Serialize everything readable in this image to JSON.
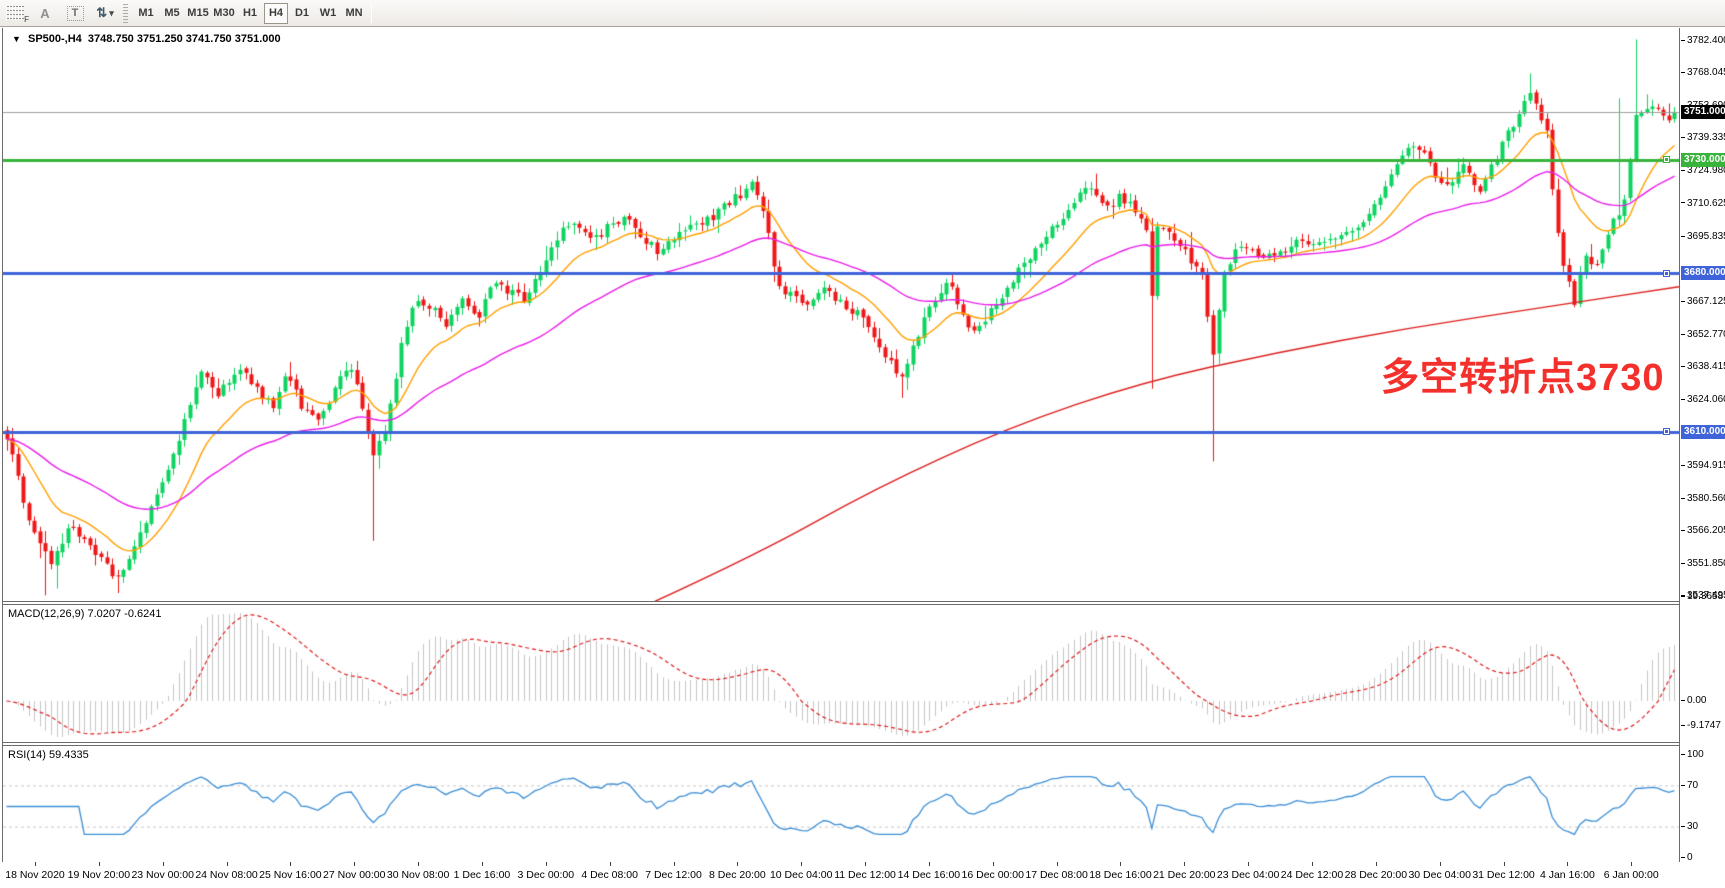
{
  "toolbar": {
    "icons": [
      {
        "name": "chart-grid-f-icon"
      },
      {
        "name": "text-annotation-icon",
        "glyph": "A"
      },
      {
        "name": "text-label-icon",
        "glyph": "T"
      },
      {
        "name": "arrange-arrows-icon",
        "glyph": "⇅"
      },
      {
        "name": "dropdown-caret-icon",
        "glyph": "▾"
      }
    ],
    "timeframes": [
      "M1",
      "M5",
      "M15",
      "M30",
      "H1",
      "H4",
      "D1",
      "W1",
      "MN"
    ],
    "active_timeframe": "H4"
  },
  "chart_window": {
    "title": "SP500-,H4",
    "ohlc": "3748.750 3751.250 3741.750 3751.000"
  },
  "annotation": {
    "text": "多空转折点3730",
    "color": "#f3302c"
  },
  "indicators": {
    "macd_label": "MACD(12,26,9) 7.0207 -0.6241",
    "rsi_label": "RSI(14) 59.4335"
  },
  "price_scale": {
    "ticks": [
      "3782.400",
      "3768.045",
      "3753.690",
      "3739.335",
      "3724.980",
      "3710.625",
      "3695.835",
      "3667.125",
      "3652.770",
      "3638.415",
      "3624.060",
      "3594.915",
      "3580.560",
      "3566.205",
      "3551.850",
      "3537.495"
    ],
    "tick_values": [
      3782.4,
      3768.045,
      3753.69,
      3739.335,
      3724.98,
      3710.625,
      3695.835,
      3667.125,
      3652.77,
      3638.415,
      3624.06,
      3594.915,
      3580.56,
      3566.205,
      3551.85,
      3537.495
    ]
  },
  "time_scale": {
    "labels": [
      "18 Nov 2020",
      "19 Nov 20:00",
      "23 Nov 00:00",
      "24 Nov 08:00",
      "25 Nov 16:00",
      "27 Nov 00:00",
      "30 Nov 08:00",
      "1 Dec 16:00",
      "3 Dec 00:00",
      "4 Dec 08:00",
      "7 Dec 12:00",
      "8 Dec 20:00",
      "10 Dec 04:00",
      "11 Dec 12:00",
      "14 Dec 16:00",
      "16 Dec 00:00",
      "17 Dec 08:00",
      "18 Dec 16:00",
      "21 Dec 20:00",
      "23 Dec 04:00",
      "24 Dec 12:00",
      "28 Dec 20:00",
      "30 Dec 04:00",
      "31 Dec 12:00",
      "4 Jan 16:00",
      "6 Jan 00:00"
    ]
  },
  "colors": {
    "candle_up": "#0ed45f",
    "candle_down": "#ef1717",
    "ma_fast": "#ffa000",
    "ma_medium": "#ea1fea",
    "ma_slow": "#dd1f1f",
    "hline_green": "#38b43c",
    "hline_blue": "#3f63d9",
    "current_price_line": "#9e9e9e",
    "current_price_badge": "#000000",
    "macd_hist": "#c6c6c6",
    "macd_signal": "#dd1f1f",
    "rsi_line": "#3d8fd6",
    "rsi_levels": "#c9c9c9"
  },
  "chart_data": {
    "type": "candlestick",
    "symbol": "SP500-",
    "timeframe": "H4",
    "bar_count": 301,
    "price_axis": {
      "max": 3788.0,
      "min": 3535.5
    },
    "last_close": 3751.0,
    "hlines": [
      {
        "price": 3751.0,
        "label": "3751.000",
        "style": "current"
      },
      {
        "price": 3730.0,
        "label": "3730.000",
        "style": "green"
      },
      {
        "price": 3680.0,
        "label": "3680.000",
        "style": "blue"
      },
      {
        "price": 3610.0,
        "label": "3610.000",
        "style": "blue"
      }
    ],
    "close_path_anchors": [
      [
        0.0,
        3608
      ],
      [
        0.008,
        3585
      ],
      [
        0.018,
        3562
      ],
      [
        0.026,
        3552
      ],
      [
        0.038,
        3568
      ],
      [
        0.048,
        3560
      ],
      [
        0.058,
        3552
      ],
      [
        0.068,
        3545
      ],
      [
        0.078,
        3560
      ],
      [
        0.09,
        3582
      ],
      [
        0.1,
        3600
      ],
      [
        0.11,
        3622
      ],
      [
        0.117,
        3638
      ],
      [
        0.125,
        3626
      ],
      [
        0.133,
        3632
      ],
      [
        0.142,
        3640
      ],
      [
        0.15,
        3628
      ],
      [
        0.16,
        3622
      ],
      [
        0.168,
        3636
      ],
      [
        0.178,
        3620
      ],
      [
        0.188,
        3615
      ],
      [
        0.196,
        3628
      ],
      [
        0.205,
        3640
      ],
      [
        0.212,
        3625
      ],
      [
        0.22,
        3601
      ],
      [
        0.228,
        3612
      ],
      [
        0.237,
        3650
      ],
      [
        0.245,
        3668
      ],
      [
        0.255,
        3665
      ],
      [
        0.263,
        3658
      ],
      [
        0.272,
        3668
      ],
      [
        0.282,
        3660
      ],
      [
        0.292,
        3678
      ],
      [
        0.3,
        3672
      ],
      [
        0.31,
        3668
      ],
      [
        0.32,
        3682
      ],
      [
        0.33,
        3696
      ],
      [
        0.34,
        3702
      ],
      [
        0.35,
        3694
      ],
      [
        0.36,
        3700
      ],
      [
        0.37,
        3705
      ],
      [
        0.38,
        3695
      ],
      [
        0.39,
        3690
      ],
      [
        0.4,
        3696
      ],
      [
        0.41,
        3700
      ],
      [
        0.42,
        3703
      ],
      [
        0.43,
        3710
      ],
      [
        0.44,
        3715
      ],
      [
        0.447,
        3719
      ],
      [
        0.454,
        3708
      ],
      [
        0.462,
        3675
      ],
      [
        0.47,
        3670
      ],
      [
        0.48,
        3665
      ],
      [
        0.49,
        3673
      ],
      [
        0.5,
        3668
      ],
      [
        0.51,
        3662
      ],
      [
        0.52,
        3652
      ],
      [
        0.53,
        3640
      ],
      [
        0.537,
        3632
      ],
      [
        0.545,
        3650
      ],
      [
        0.555,
        3668
      ],
      [
        0.565,
        3677
      ],
      [
        0.572,
        3662
      ],
      [
        0.58,
        3655
      ],
      [
        0.59,
        3663
      ],
      [
        0.6,
        3674
      ],
      [
        0.61,
        3684
      ],
      [
        0.62,
        3692
      ],
      [
        0.63,
        3702
      ],
      [
        0.64,
        3712
      ],
      [
        0.65,
        3718
      ],
      [
        0.658,
        3708
      ],
      [
        0.667,
        3714
      ],
      [
        0.676,
        3708
      ],
      [
        0.683,
        3700
      ],
      [
        0.687,
        3668
      ],
      [
        0.69,
        3700
      ],
      [
        0.7,
        3696
      ],
      [
        0.708,
        3688
      ],
      [
        0.717,
        3680
      ],
      [
        0.724,
        3640
      ],
      [
        0.728,
        3678
      ],
      [
        0.735,
        3688
      ],
      [
        0.745,
        3692
      ],
      [
        0.755,
        3687
      ],
      [
        0.765,
        3690
      ],
      [
        0.775,
        3696
      ],
      [
        0.785,
        3691
      ],
      [
        0.795,
        3694
      ],
      [
        0.805,
        3698
      ],
      [
        0.815,
        3704
      ],
      [
        0.825,
        3716
      ],
      [
        0.835,
        3728
      ],
      [
        0.842,
        3738
      ],
      [
        0.85,
        3732
      ],
      [
        0.858,
        3722
      ],
      [
        0.866,
        3720
      ],
      [
        0.874,
        3727
      ],
      [
        0.882,
        3716
      ],
      [
        0.89,
        3726
      ],
      [
        0.898,
        3738
      ],
      [
        0.906,
        3750
      ],
      [
        0.912,
        3760
      ],
      [
        0.918,
        3752
      ],
      [
        0.924,
        3740
      ],
      [
        0.929,
        3700
      ],
      [
        0.934,
        3680
      ],
      [
        0.94,
        3668
      ],
      [
        0.946,
        3690
      ],
      [
        0.952,
        3680
      ],
      [
        0.958,
        3694
      ],
      [
        0.964,
        3703
      ],
      [
        0.97,
        3712
      ],
      [
        0.976,
        3748
      ],
      [
        0.982,
        3750
      ],
      [
        0.988,
        3754
      ],
      [
        0.994,
        3747
      ],
      [
        1.0,
        3751
      ]
    ],
    "wick_spikes": [
      [
        0.022,
        "low",
        3538
      ],
      [
        0.03,
        "low",
        3541
      ],
      [
        0.068,
        "low",
        3539
      ],
      [
        0.22,
        "low",
        3562
      ],
      [
        0.537,
        "low",
        3625
      ],
      [
        0.687,
        "low",
        3629
      ],
      [
        0.724,
        "low",
        3597
      ],
      [
        0.912,
        "high",
        3768
      ],
      [
        0.968,
        "high",
        3757
      ],
      [
        0.976,
        "high",
        3783
      ]
    ],
    "moving_averages": [
      {
        "name": "fast",
        "period": 14,
        "color_key": "ma_fast"
      },
      {
        "name": "medium",
        "period": 45,
        "color_key": "ma_medium"
      },
      {
        "name": "slow",
        "color_key": "ma_slow",
        "anchors": [
          [
            0.385,
            3534
          ],
          [
            0.45,
            3556
          ],
          [
            0.52,
            3585
          ],
          [
            0.6,
            3612
          ],
          [
            0.68,
            3632
          ],
          [
            0.76,
            3645
          ],
          [
            0.84,
            3656
          ],
          [
            0.92,
            3665
          ],
          [
            1.0,
            3674
          ]
        ]
      }
    ],
    "macd": {
      "params": "12,26,9",
      "value": "7.0207",
      "signal_value": "-0.6241",
      "axis_labels": [
        "19.3658",
        "0.00",
        "-9.1747"
      ],
      "axis_values": [
        19.3658,
        0.0,
        -9.1747
      ]
    },
    "rsi": {
      "period": 14,
      "value": "59.4335",
      "levels": [
        70,
        30
      ],
      "axis_labels": [
        "100",
        "70",
        "30",
        "0"
      ],
      "axis_values": [
        100,
        70,
        30,
        0
      ]
    }
  }
}
